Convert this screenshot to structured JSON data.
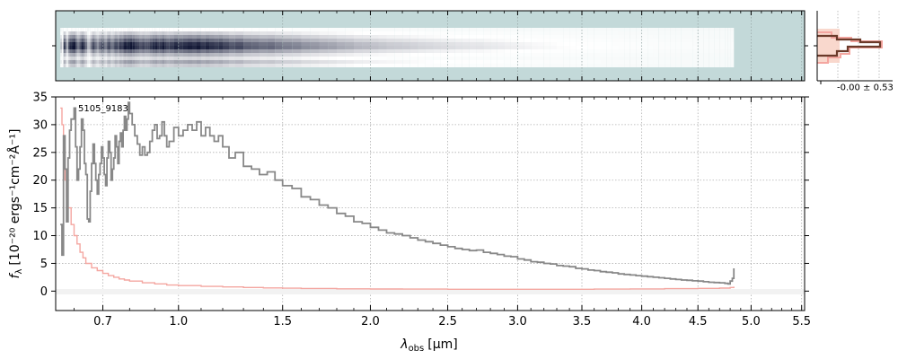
{
  "chart_data": {
    "type": "line",
    "object_id": "5105_9183",
    "xlabel_main": "λ",
    "xlabel_sub": "obs",
    "xlabel_unit": "[μm]",
    "ylabel_main": "f",
    "ylabel_sub": "λ",
    "ylabel_unit": "[10⁻²⁰ ergs⁻¹cm⁻²Å⁻¹]",
    "xlim": [
      0.54,
      5.53
    ],
    "ylim": [
      -3.5,
      35
    ],
    "x_scale": "sqrt",
    "grid": true,
    "x_ticks": [
      {
        "value": 0.7,
        "label": "0.7"
      },
      {
        "value": 1.0,
        "label": "1.0"
      },
      {
        "value": 1.5,
        "label": "1.5"
      },
      {
        "value": 2.0,
        "label": "2.0"
      },
      {
        "value": 2.5,
        "label": "2.5"
      },
      {
        "value": 3.0,
        "label": "3.0"
      },
      {
        "value": 3.5,
        "label": "3.5"
      },
      {
        "value": 4.0,
        "label": "4.0"
      },
      {
        "value": 4.5,
        "label": "4.5"
      },
      {
        "value": 5.0,
        "label": "5.0"
      },
      {
        "value": 5.5,
        "label": "5.5"
      }
    ],
    "x_minor_ticks": [
      0.6,
      0.8,
      0.9,
      1.1,
      1.2,
      1.3,
      1.4,
      1.6,
      1.7,
      1.8,
      1.9
    ],
    "y_ticks": [
      {
        "value": 0,
        "label": "0"
      },
      {
        "value": 5,
        "label": "5"
      },
      {
        "value": 10,
        "label": "10"
      },
      {
        "value": 15,
        "label": "15"
      },
      {
        "value": 20,
        "label": "20"
      },
      {
        "value": 25,
        "label": "25"
      },
      {
        "value": 30,
        "label": "30"
      },
      {
        "value": 35,
        "label": "35"
      }
    ],
    "series": [
      {
        "role": "flux",
        "color": "#888888",
        "style": "step",
        "points": [
          [
            0.555,
            12
          ],
          [
            0.56,
            6.5
          ],
          [
            0.565,
            28
          ],
          [
            0.57,
            22
          ],
          [
            0.575,
            12.5
          ],
          [
            0.58,
            24
          ],
          [
            0.585,
            29
          ],
          [
            0.59,
            31
          ],
          [
            0.595,
            31
          ],
          [
            0.6,
            33
          ],
          [
            0.605,
            26
          ],
          [
            0.61,
            20
          ],
          [
            0.615,
            22
          ],
          [
            0.62,
            26
          ],
          [
            0.625,
            31
          ],
          [
            0.63,
            29
          ],
          [
            0.635,
            23
          ],
          [
            0.64,
            21
          ],
          [
            0.645,
            13
          ],
          [
            0.65,
            12.5
          ],
          [
            0.655,
            18
          ],
          [
            0.66,
            23
          ],
          [
            0.665,
            26.5
          ],
          [
            0.67,
            23
          ],
          [
            0.675,
            20
          ],
          [
            0.68,
            17.5
          ],
          [
            0.685,
            21
          ],
          [
            0.69,
            23
          ],
          [
            0.695,
            26
          ],
          [
            0.7,
            24
          ],
          [
            0.705,
            21
          ],
          [
            0.71,
            19
          ],
          [
            0.715,
            24
          ],
          [
            0.72,
            27
          ],
          [
            0.725,
            25
          ],
          [
            0.73,
            20
          ],
          [
            0.735,
            22
          ],
          [
            0.74,
            24
          ],
          [
            0.745,
            28
          ],
          [
            0.75,
            26
          ],
          [
            0.755,
            23
          ],
          [
            0.76,
            27
          ],
          [
            0.765,
            28.5
          ],
          [
            0.77,
            26
          ],
          [
            0.775,
            29
          ],
          [
            0.78,
            31.5
          ],
          [
            0.785,
            29
          ],
          [
            0.79,
            31
          ],
          [
            0.795,
            34
          ],
          [
            0.8,
            32
          ],
          [
            0.81,
            30
          ],
          [
            0.82,
            28
          ],
          [
            0.83,
            26.5
          ],
          [
            0.84,
            24.5
          ],
          [
            0.85,
            26
          ],
          [
            0.86,
            24.5
          ],
          [
            0.87,
            25
          ],
          [
            0.88,
            27
          ],
          [
            0.89,
            29
          ],
          [
            0.9,
            30
          ],
          [
            0.91,
            27.5
          ],
          [
            0.92,
            28
          ],
          [
            0.93,
            30.5
          ],
          [
            0.94,
            28
          ],
          [
            0.95,
            26
          ],
          [
            0.96,
            27
          ],
          [
            0.98,
            29.5
          ],
          [
            1.0,
            28
          ],
          [
            1.02,
            29
          ],
          [
            1.04,
            30
          ],
          [
            1.06,
            29
          ],
          [
            1.08,
            30.5
          ],
          [
            1.1,
            28
          ],
          [
            1.12,
            29.5
          ],
          [
            1.14,
            28
          ],
          [
            1.16,
            27
          ],
          [
            1.18,
            28
          ],
          [
            1.2,
            26
          ],
          [
            1.23,
            24
          ],
          [
            1.26,
            25
          ],
          [
            1.3,
            22.5
          ],
          [
            1.34,
            22
          ],
          [
            1.38,
            21
          ],
          [
            1.42,
            21.5
          ],
          [
            1.46,
            20
          ],
          [
            1.5,
            19
          ],
          [
            1.55,
            18.5
          ],
          [
            1.6,
            17
          ],
          [
            1.65,
            16.5
          ],
          [
            1.7,
            15.5
          ],
          [
            1.75,
            15
          ],
          [
            1.8,
            14
          ],
          [
            1.85,
            13.5
          ],
          [
            1.9,
            12.5
          ],
          [
            1.95,
            12.2
          ],
          [
            2.0,
            11.5
          ],
          [
            2.05,
            11
          ],
          [
            2.1,
            10.5
          ],
          [
            2.15,
            10.3
          ],
          [
            2.2,
            10
          ],
          [
            2.25,
            9.6
          ],
          [
            2.3,
            9.2
          ],
          [
            2.35,
            8.9
          ],
          [
            2.4,
            8.6
          ],
          [
            2.45,
            8.3
          ],
          [
            2.5,
            8
          ],
          [
            2.55,
            7.7
          ],
          [
            2.6,
            7.5
          ],
          [
            2.65,
            7.3
          ],
          [
            2.7,
            7.4
          ],
          [
            2.75,
            7
          ],
          [
            2.8,
            6.8
          ],
          [
            2.85,
            6.6
          ],
          [
            2.9,
            6.3
          ],
          [
            2.95,
            6.2
          ],
          [
            3.0,
            5.8
          ],
          [
            3.05,
            5.6
          ],
          [
            3.1,
            5.3
          ],
          [
            3.15,
            5.2
          ],
          [
            3.2,
            5
          ],
          [
            3.25,
            4.9
          ],
          [
            3.3,
            4.6
          ],
          [
            3.35,
            4.5
          ],
          [
            3.4,
            4.4
          ],
          [
            3.45,
            4.1
          ],
          [
            3.5,
            4
          ],
          [
            3.55,
            3.8
          ],
          [
            3.6,
            3.7
          ],
          [
            3.65,
            3.5
          ],
          [
            3.7,
            3.4
          ],
          [
            3.75,
            3.3
          ],
          [
            3.8,
            3.1
          ],
          [
            3.85,
            3
          ],
          [
            3.9,
            2.9
          ],
          [
            3.95,
            2.8
          ],
          [
            4.0,
            2.7
          ],
          [
            4.05,
            2.6
          ],
          [
            4.1,
            2.5
          ],
          [
            4.15,
            2.4
          ],
          [
            4.2,
            2.3
          ],
          [
            4.25,
            2.2
          ],
          [
            4.3,
            2.1
          ],
          [
            4.35,
            2
          ],
          [
            4.4,
            1.95
          ],
          [
            4.45,
            1.85
          ],
          [
            4.5,
            1.8
          ],
          [
            4.55,
            1.7
          ],
          [
            4.6,
            1.6
          ],
          [
            4.65,
            1.55
          ],
          [
            4.7,
            1.5
          ],
          [
            4.75,
            1.4
          ],
          [
            4.78,
            1.3
          ],
          [
            4.8,
            1.8
          ],
          [
            4.82,
            2.3
          ],
          [
            4.835,
            4.1
          ]
        ]
      },
      {
        "role": "error",
        "color": "#f4a6a0",
        "style": "step",
        "points": [
          [
            0.555,
            33
          ],
          [
            0.56,
            30
          ],
          [
            0.565,
            26
          ],
          [
            0.57,
            20
          ],
          [
            0.575,
            17
          ],
          [
            0.58,
            15
          ],
          [
            0.59,
            12
          ],
          [
            0.6,
            10
          ],
          [
            0.61,
            8.5
          ],
          [
            0.62,
            7
          ],
          [
            0.63,
            6
          ],
          [
            0.64,
            5
          ],
          [
            0.66,
            4.2
          ],
          [
            0.68,
            3.7
          ],
          [
            0.7,
            3.2
          ],
          [
            0.72,
            2.8
          ],
          [
            0.74,
            2.5
          ],
          [
            0.76,
            2.2
          ],
          [
            0.78,
            2
          ],
          [
            0.8,
            1.8
          ],
          [
            0.85,
            1.5
          ],
          [
            0.9,
            1.3
          ],
          [
            0.95,
            1.1
          ],
          [
            1.0,
            1
          ],
          [
            1.1,
            0.85
          ],
          [
            1.2,
            0.75
          ],
          [
            1.3,
            0.65
          ],
          [
            1.4,
            0.58
          ],
          [
            1.5,
            0.52
          ],
          [
            1.6,
            0.48
          ],
          [
            1.8,
            0.42
          ],
          [
            2.0,
            0.38
          ],
          [
            2.2,
            0.36
          ],
          [
            2.5,
            0.34
          ],
          [
            2.8,
            0.33
          ],
          [
            3.0,
            0.33
          ],
          [
            3.3,
            0.34
          ],
          [
            3.6,
            0.36
          ],
          [
            3.9,
            0.4
          ],
          [
            4.2,
            0.45
          ],
          [
            4.5,
            0.5
          ],
          [
            4.7,
            0.55
          ],
          [
            4.8,
            0.65
          ],
          [
            4.835,
            0.8
          ]
        ]
      }
    ],
    "inset": {
      "annotation": "-0.00 ± 0.53"
    }
  }
}
